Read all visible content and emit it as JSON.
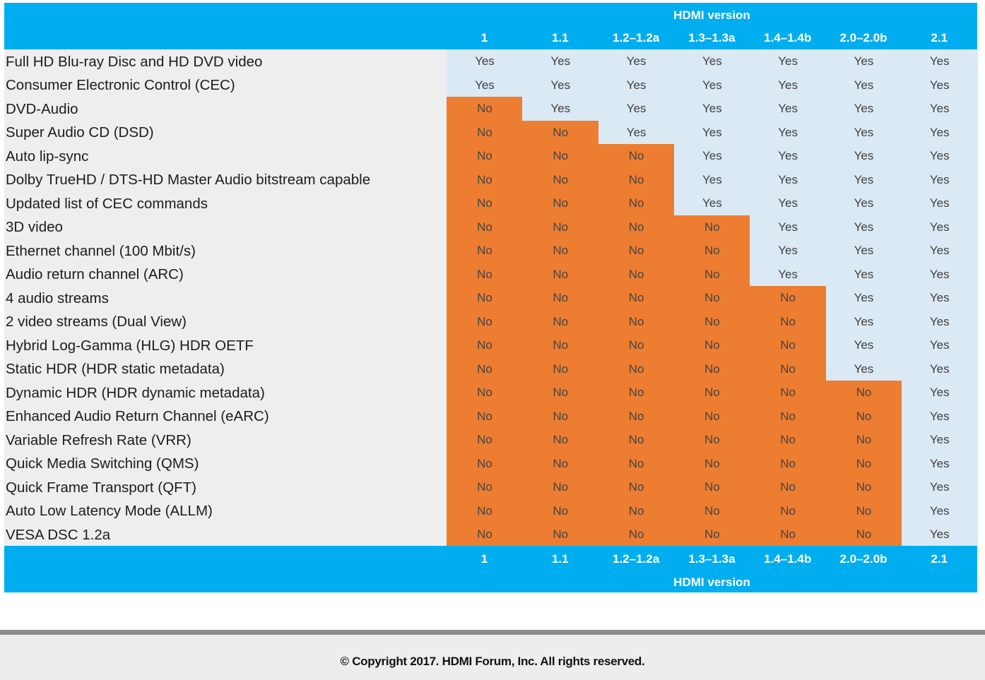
{
  "chart_data": {
    "type": "table",
    "title": "HDMI version",
    "versions": [
      "1",
      "1.1",
      "1.2–1.2a",
      "1.3–1.3a",
      "1.4–1.4b",
      "2.0–2.0b",
      "2.1"
    ],
    "yes_label": "Yes",
    "no_label": "No",
    "rows": [
      {
        "feature": "Full HD Blu-ray Disc and HD DVD video",
        "first_version_index": 0
      },
      {
        "feature": "Consumer Electronic Control (CEC)",
        "first_version_index": 0
      },
      {
        "feature": "DVD-Audio",
        "first_version_index": 1
      },
      {
        "feature": "Super Audio CD (DSD)",
        "first_version_index": 2
      },
      {
        "feature": "Auto lip-sync",
        "first_version_index": 3
      },
      {
        "feature": "Dolby TrueHD / DTS-HD Master Audio bitstream capable",
        "first_version_index": 3
      },
      {
        "feature": "Updated list of CEC commands",
        "first_version_index": 3
      },
      {
        "feature": "3D video",
        "first_version_index": 4
      },
      {
        "feature": "Ethernet channel (100 Mbit/s)",
        "first_version_index": 4
      },
      {
        "feature": "Audio return channel (ARC)",
        "first_version_index": 4
      },
      {
        "feature": "4 audio streams",
        "first_version_index": 5
      },
      {
        "feature": "2 video streams (Dual View)",
        "first_version_index": 5
      },
      {
        "feature": "Hybrid Log-Gamma (HLG) HDR OETF",
        "first_version_index": 5
      },
      {
        "feature": "Static HDR (HDR static metadata)",
        "first_version_index": 5
      },
      {
        "feature": "Dynamic HDR (HDR dynamic metadata)",
        "first_version_index": 6
      },
      {
        "feature": "Enhanced Audio Return Channel (eARC)",
        "first_version_index": 6
      },
      {
        "feature": "Variable Refresh Rate (VRR)",
        "first_version_index": 6
      },
      {
        "feature": "Quick Media Switching (QMS)",
        "first_version_index": 6
      },
      {
        "feature": "Quick Frame Transport (QFT)",
        "first_version_index": 6
      },
      {
        "feature": "Auto Low Latency Mode (ALLM)",
        "first_version_index": 6
      },
      {
        "feature": "VESA DSC 1.2a",
        "first_version_index": 6
      }
    ]
  },
  "header": {
    "title": "HDMI version"
  },
  "footer": {
    "title": "HDMI version",
    "copyright": "© Copyright 2017. HDMI Forum, Inc.  All rights reserved."
  },
  "colors": {
    "header_blue": "#00aeef",
    "yes_fill": "#dbe9f5",
    "no_fill": "#ed7d31",
    "feature_fill": "#eeeeee"
  }
}
